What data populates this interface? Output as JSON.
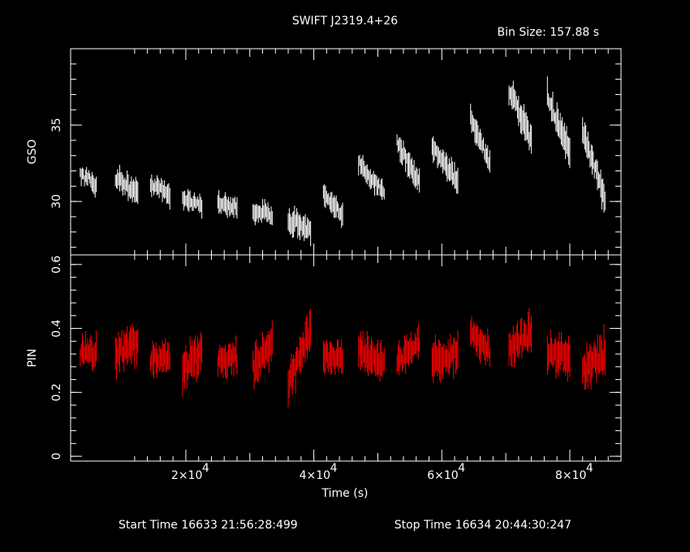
{
  "chart_data": {
    "type": "scatter",
    "title": "SWIFT J2319.4+26",
    "subtitle": "Bin Size: 157.88 s",
    "xlabel": "Time (s)",
    "xlim": [
      2000,
      88000
    ],
    "x_ticks": [
      {
        "value": 20000,
        "mant": "2",
        "exp": "4"
      },
      {
        "value": 40000,
        "mant": "4",
        "exp": "4"
      },
      {
        "value": 60000,
        "mant": "6",
        "exp": "4"
      },
      {
        "value": 80000,
        "mant": "8",
        "exp": "4"
      }
    ],
    "x_times_sign": "×10",
    "footer": {
      "start": "Start Time 16633 21:56:28:499",
      "stop": "Stop Time 16634 20:44:30:247"
    },
    "panels": [
      {
        "id": "gso",
        "ylabel": "GSO",
        "ylim": [
          26.5,
          40
        ],
        "ytick_values": [
          30,
          35
        ],
        "ytick_labels": [
          "30",
          "35"
        ],
        "color": "#ffffff",
        "segments": [
          {
            "x0": 3500,
            "x1": 6000,
            "y0": 31.8,
            "y1": 31.0,
            "err": 0.7
          },
          {
            "x0": 9000,
            "x1": 12500,
            "y0": 31.6,
            "y1": 30.5,
            "err": 0.8
          },
          {
            "x0": 14500,
            "x1": 17500,
            "y0": 31.2,
            "y1": 30.4,
            "err": 0.7
          },
          {
            "x0": 19500,
            "x1": 22500,
            "y0": 30.2,
            "y1": 29.8,
            "err": 0.7
          },
          {
            "x0": 25000,
            "x1": 28000,
            "y0": 29.8,
            "y1": 29.6,
            "err": 0.7
          },
          {
            "x0": 30500,
            "x1": 33500,
            "y0": 29.4,
            "y1": 29.1,
            "err": 0.7
          },
          {
            "x0": 36000,
            "x1": 39500,
            "y0": 28.9,
            "y1": 28.1,
            "err": 0.8
          },
          {
            "x0": 41500,
            "x1": 44500,
            "y0": 30.4,
            "y1": 29.0,
            "err": 0.7
          },
          {
            "x0": 47000,
            "x1": 51000,
            "y0": 32.5,
            "y1": 30.6,
            "err": 0.7
          },
          {
            "x0": 53000,
            "x1": 56500,
            "y0": 33.8,
            "y1": 31.2,
            "err": 0.8
          },
          {
            "x0": 58500,
            "x1": 62500,
            "y0": 33.6,
            "y1": 31.4,
            "err": 0.8
          },
          {
            "x0": 64500,
            "x1": 67500,
            "y0": 35.5,
            "y1": 32.5,
            "err": 0.8
          },
          {
            "x0": 70500,
            "x1": 74000,
            "y0": 37.3,
            "y1": 34.0,
            "err": 0.9
          },
          {
            "x0": 76500,
            "x1": 80000,
            "y0": 36.8,
            "y1": 33.3,
            "err": 0.9
          },
          {
            "x0": 82000,
            "x1": 85500,
            "y0": 34.5,
            "y1": 30.2,
            "err": 0.9
          }
        ]
      },
      {
        "id": "pin",
        "ylabel": "PIN",
        "ylim": [
          -0.015,
          0.63
        ],
        "ytick_values": [
          0,
          0.2,
          0.4,
          0.6
        ],
        "ytick_labels": [
          "0",
          "0.2",
          "0.4",
          "0.6"
        ],
        "color": "#ff0000",
        "segments": [
          {
            "x0": 3500,
            "x1": 6000,
            "y0": 0.33,
            "y1": 0.32,
            "err": 0.05
          },
          {
            "x0": 9000,
            "x1": 12500,
            "y0": 0.33,
            "y1": 0.36,
            "err": 0.06
          },
          {
            "x0": 14500,
            "x1": 17500,
            "y0": 0.3,
            "y1": 0.31,
            "err": 0.05
          },
          {
            "x0": 19500,
            "x1": 22500,
            "y0": 0.27,
            "y1": 0.33,
            "err": 0.06
          },
          {
            "x0": 25000,
            "x1": 28000,
            "y0": 0.3,
            "y1": 0.31,
            "err": 0.05
          },
          {
            "x0": 30500,
            "x1": 33500,
            "y0": 0.28,
            "y1": 0.36,
            "err": 0.06
          },
          {
            "x0": 36000,
            "x1": 39500,
            "y0": 0.22,
            "y1": 0.4,
            "err": 0.06
          },
          {
            "x0": 41500,
            "x1": 44500,
            "y0": 0.3,
            "y1": 0.32,
            "err": 0.05
          },
          {
            "x0": 47000,
            "x1": 51000,
            "y0": 0.33,
            "y1": 0.29,
            "err": 0.06
          },
          {
            "x0": 53000,
            "x1": 56500,
            "y0": 0.3,
            "y1": 0.36,
            "err": 0.05
          },
          {
            "x0": 58500,
            "x1": 62500,
            "y0": 0.3,
            "y1": 0.32,
            "err": 0.06
          },
          {
            "x0": 64500,
            "x1": 67500,
            "y0": 0.38,
            "y1": 0.33,
            "err": 0.05
          },
          {
            "x0": 70500,
            "x1": 74000,
            "y0": 0.34,
            "y1": 0.38,
            "err": 0.06
          },
          {
            "x0": 76500,
            "x1": 80000,
            "y0": 0.33,
            "y1": 0.31,
            "err": 0.06
          },
          {
            "x0": 82000,
            "x1": 85500,
            "y0": 0.26,
            "y1": 0.33,
            "err": 0.07
          }
        ]
      }
    ]
  }
}
